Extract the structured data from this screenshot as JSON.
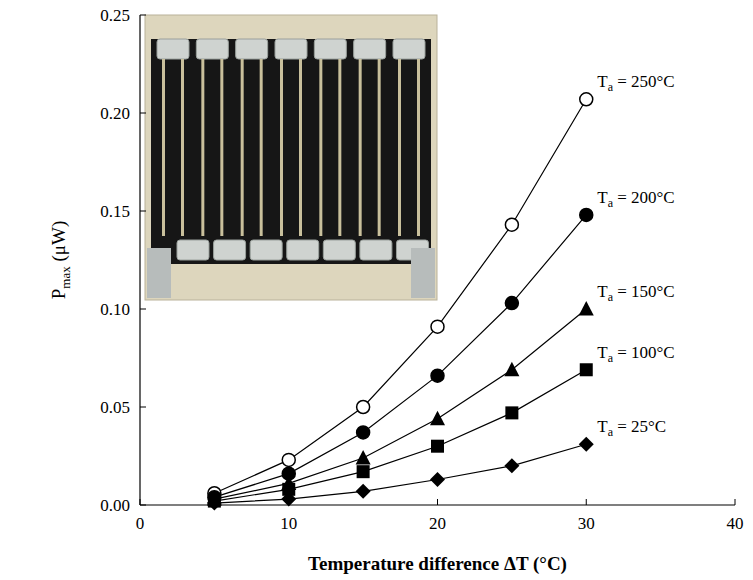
{
  "chart_data": {
    "type": "line",
    "x_label": "Temperature difference ΔT (°C)",
    "y_label": "Pmax (μW)",
    "x": [
      5,
      10,
      15,
      20,
      25,
      30
    ],
    "series": [
      {
        "name": "Ta = 250°C",
        "color": "#000000",
        "marker": "circle_open",
        "values": [
          0.006,
          0.023,
          0.05,
          0.091,
          0.143,
          0.207
        ]
      },
      {
        "name": "Ta = 200°C",
        "color": "#000000",
        "marker": "circle",
        "values": [
          0.004,
          0.016,
          0.037,
          0.066,
          0.103,
          0.148
        ]
      },
      {
        "name": "Ta = 150°C",
        "color": "#000000",
        "marker": "triangle",
        "values": [
          0.003,
          0.011,
          0.024,
          0.044,
          0.069,
          0.1
        ]
      },
      {
        "name": "Ta = 100°C",
        "color": "#000000",
        "marker": "square",
        "values": [
          0.002,
          0.008,
          0.017,
          0.03,
          0.047,
          0.069
        ]
      },
      {
        "name": "Ta = 25°C",
        "color": "#000000",
        "marker": "diamond",
        "values": [
          0.001,
          0.003,
          0.007,
          0.013,
          0.02,
          0.031
        ]
      }
    ],
    "xlim": [
      0,
      40
    ],
    "ylim": [
      0,
      0.25
    ],
    "xticks": [
      0,
      10,
      20,
      30,
      40
    ],
    "yticks": [
      {
        "value": 0,
        "label": "0.00"
      },
      {
        "value": 0.05,
        "label": "0.05"
      },
      {
        "value": 0.1,
        "label": "0.10"
      },
      {
        "value": 0.15,
        "label": "0.15"
      },
      {
        "value": 0.2,
        "label": "0.20"
      },
      {
        "value": 0.25,
        "label": "0.25"
      }
    ]
  }
}
